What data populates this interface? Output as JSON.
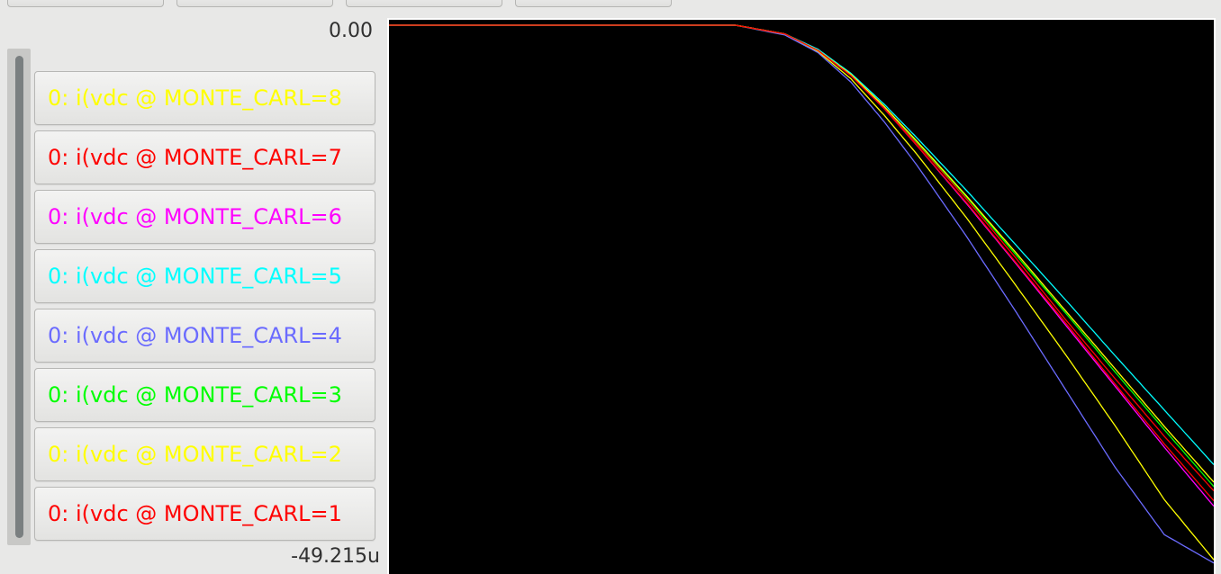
{
  "toolbar": {
    "buttons": [
      "",
      "",
      "",
      ""
    ]
  },
  "y_axis": {
    "max_label": "0.00",
    "min_label": "-49.215u"
  },
  "traces": [
    {
      "label": "0: i(vdc @ MONTE_CARL=8",
      "color": "#ffff00"
    },
    {
      "label": "0: i(vdc @ MONTE_CARL=7",
      "color": "#ff0000"
    },
    {
      "label": "0: i(vdc @ MONTE_CARL=6",
      "color": "#ff00ff"
    },
    {
      "label": "0: i(vdc @ MONTE_CARL=5",
      "color": "#00ffff"
    },
    {
      "label": "0: i(vdc @ MONTE_CARL=4",
      "color": "#6b6bff"
    },
    {
      "label": "0: i(vdc @ MONTE_CARL=3",
      "color": "#00ff00"
    },
    {
      "label": "0: i(vdc @ MONTE_CARL=2",
      "color": "#ffff00"
    },
    {
      "label": "0: i(vdc @ MONTE_CARL=1",
      "color": "#ff0000"
    }
  ],
  "chart_data": {
    "type": "line",
    "title": "",
    "xlabel": "",
    "ylabel": "",
    "ylim": [
      -49.215,
      0.0
    ],
    "y_unit": "u",
    "grid": false,
    "background": "#000000",
    "series": [
      {
        "name": "0: i(vdc @ MONTE_CARL=8",
        "color": "#ffff00",
        "x": [
          0,
          0.42,
          0.48,
          0.52,
          0.56,
          0.6,
          0.64,
          0.7,
          0.76,
          0.82,
          0.88,
          0.94,
          1.0
        ],
        "values": [
          0,
          0,
          -0.8,
          -2.4,
          -4.9,
          -8.2,
          -11.8,
          -17.6,
          -23.8,
          -30.1,
          -36.6,
          -43.4,
          -48.9
        ]
      },
      {
        "name": "0: i(vdc @ MONTE_CARL=7",
        "color": "#ff0000",
        "x": [
          0,
          0.42,
          0.48,
          0.52,
          0.56,
          0.6,
          0.64,
          0.7,
          0.76,
          0.82,
          0.88,
          0.94,
          1.0
        ],
        "values": [
          0,
          0,
          -0.8,
          -2.3,
          -4.6,
          -7.5,
          -10.8,
          -15.9,
          -21.3,
          -26.9,
          -32.3,
          -37.6,
          -42.6
        ]
      },
      {
        "name": "0: i(vdc @ MONTE_CARL=6",
        "color": "#ff00ff",
        "x": [
          0,
          0.42,
          0.48,
          0.52,
          0.56,
          0.6,
          0.64,
          0.7,
          0.76,
          0.82,
          0.88,
          0.94,
          1.0
        ],
        "values": [
          0,
          0,
          -0.8,
          -2.3,
          -4.6,
          -7.6,
          -11.0,
          -16.3,
          -21.8,
          -27.4,
          -33.0,
          -38.6,
          -44.0
        ]
      },
      {
        "name": "0: i(vdc @ MONTE_CARL=5",
        "color": "#00ffff",
        "x": [
          0,
          0.42,
          0.48,
          0.52,
          0.56,
          0.6,
          0.64,
          0.7,
          0.76,
          0.82,
          0.88,
          0.94,
          1.0
        ],
        "values": [
          0,
          0,
          -0.8,
          -2.2,
          -4.4,
          -7.2,
          -10.3,
          -15.1,
          -20.1,
          -25.1,
          -30.2,
          -35.2,
          -40.2
        ]
      },
      {
        "name": "0: i(vdc @ MONTE_CARL=4",
        "color": "#6b6bff",
        "x": [
          0,
          0.42,
          0.48,
          0.52,
          0.56,
          0.6,
          0.64,
          0.7,
          0.76,
          0.82,
          0.88,
          0.94,
          1.0
        ],
        "values": [
          0,
          0,
          -0.9,
          -2.5,
          -5.2,
          -8.8,
          -12.8,
          -19.3,
          -26.2,
          -33.3,
          -40.4,
          -46.6,
          -49.2
        ]
      },
      {
        "name": "0: i(vdc @ MONTE_CARL=3",
        "color": "#00ff00",
        "x": [
          0,
          0.42,
          0.48,
          0.52,
          0.56,
          0.6,
          0.64,
          0.7,
          0.76,
          0.82,
          0.88,
          0.94,
          1.0
        ],
        "values": [
          0,
          0,
          -0.8,
          -2.3,
          -4.5,
          -7.4,
          -10.7,
          -15.7,
          -21.0,
          -26.3,
          -31.7,
          -37.0,
          -42.2
        ]
      },
      {
        "name": "0: i(vdc @ MONTE_CARL=2",
        "color": "#ffff00",
        "x": [
          0,
          0.42,
          0.48,
          0.52,
          0.56,
          0.6,
          0.64,
          0.7,
          0.76,
          0.82,
          0.88,
          0.94,
          1.0
        ],
        "values": [
          0,
          0,
          -0.8,
          -2.3,
          -4.5,
          -7.4,
          -10.6,
          -15.6,
          -20.8,
          -26.1,
          -31.4,
          -36.7,
          -41.8
        ]
      },
      {
        "name": "0: i(vdc @ MONTE_CARL=1",
        "color": "#ff0000",
        "x": [
          0,
          0.42,
          0.48,
          0.52,
          0.56,
          0.6,
          0.64,
          0.7,
          0.76,
          0.82,
          0.88,
          0.94,
          1.0
        ],
        "values": [
          0,
          0,
          -0.8,
          -2.3,
          -4.6,
          -7.6,
          -11.0,
          -16.2,
          -21.7,
          -27.2,
          -32.8,
          -38.3,
          -43.5
        ]
      }
    ]
  }
}
